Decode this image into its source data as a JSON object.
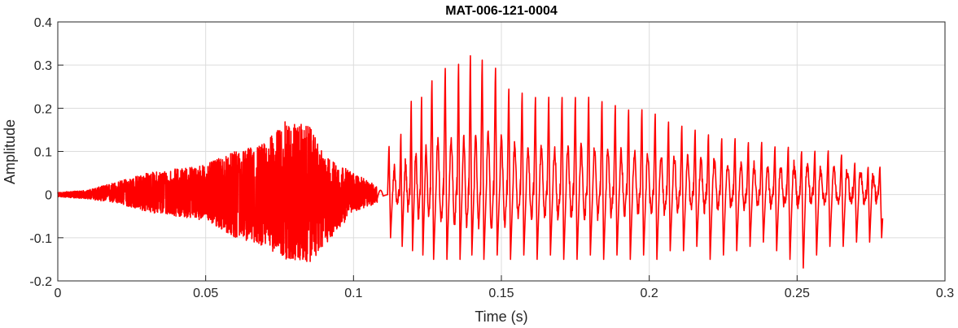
{
  "chart_data": {
    "type": "line",
    "title": "MAT-006-121-0004",
    "xlabel": "Time (s)",
    "ylabel": "Amplitude",
    "xlim": [
      0,
      0.3
    ],
    "ylim": [
      -0.2,
      0.4
    ],
    "xticks": [
      0,
      0.05,
      0.1,
      0.15,
      0.2,
      0.25,
      0.3
    ],
    "xtick_labels": [
      "0",
      "0.05",
      "0.1",
      "0.15",
      "0.2",
      "0.25",
      "0.3"
    ],
    "yticks": [
      -0.2,
      -0.1,
      0,
      0.1,
      0.2,
      0.3,
      0.4
    ],
    "ytick_labels": [
      "-0.2",
      "-0.1",
      "0",
      "0.1",
      "0.2",
      "0.3",
      "0.4"
    ],
    "grid": true,
    "series": [
      {
        "color": "#ff0000",
        "signal_end_s": 0.279,
        "envelope_unvoiced": [
          {
            "t": 0.0,
            "max": 0.005,
            "min": -0.005
          },
          {
            "t": 0.01,
            "max": 0.01,
            "min": -0.01
          },
          {
            "t": 0.02,
            "max": 0.03,
            "min": -0.02
          },
          {
            "t": 0.03,
            "max": 0.05,
            "min": -0.04
          },
          {
            "t": 0.04,
            "max": 0.06,
            "min": -0.05
          },
          {
            "t": 0.05,
            "max": 0.07,
            "min": -0.06
          },
          {
            "t": 0.06,
            "max": 0.1,
            "min": -0.1
          },
          {
            "t": 0.07,
            "max": 0.12,
            "min": -0.12
          },
          {
            "t": 0.077,
            "max": 0.17,
            "min": -0.15
          },
          {
            "t": 0.085,
            "max": 0.16,
            "min": -0.16
          },
          {
            "t": 0.09,
            "max": 0.09,
            "min": -0.12
          },
          {
            "t": 0.1,
            "max": 0.05,
            "min": -0.04
          },
          {
            "t": 0.108,
            "max": 0.02,
            "min": -0.02
          }
        ],
        "voiced_pulses": [
          {
            "t": 0.112,
            "peak": 0.12,
            "trough": -0.1
          },
          {
            "t": 0.116,
            "peak": 0.15,
            "trough": -0.12
          },
          {
            "t": 0.1195,
            "peak": 0.23,
            "trough": -0.13
          },
          {
            "t": 0.123,
            "peak": 0.24,
            "trough": -0.14
          },
          {
            "t": 0.1265,
            "peak": 0.28,
            "trough": -0.15
          },
          {
            "t": 0.131,
            "peak": 0.31,
            "trough": -0.15
          },
          {
            "t": 0.1355,
            "peak": 0.32,
            "trough": -0.15
          },
          {
            "t": 0.1395,
            "peak": 0.34,
            "trough": -0.14
          },
          {
            "t": 0.1435,
            "peak": 0.33,
            "trough": -0.15
          },
          {
            "t": 0.148,
            "peak": 0.31,
            "trough": -0.14
          },
          {
            "t": 0.1525,
            "peak": 0.26,
            "trough": -0.15
          },
          {
            "t": 0.157,
            "peak": 0.25,
            "trough": -0.14
          },
          {
            "t": 0.1615,
            "peak": 0.24,
            "trough": -0.15
          },
          {
            "t": 0.166,
            "peak": 0.24,
            "trough": -0.14
          },
          {
            "t": 0.1705,
            "peak": 0.24,
            "trough": -0.15
          },
          {
            "t": 0.175,
            "peak": 0.24,
            "trough": -0.15
          },
          {
            "t": 0.1795,
            "peak": 0.24,
            "trough": -0.14
          },
          {
            "t": 0.184,
            "peak": 0.23,
            "trough": -0.15
          },
          {
            "t": 0.1885,
            "peak": 0.22,
            "trough": -0.14
          },
          {
            "t": 0.193,
            "peak": 0.21,
            "trough": -0.15
          },
          {
            "t": 0.1975,
            "peak": 0.21,
            "trough": -0.14
          },
          {
            "t": 0.202,
            "peak": 0.2,
            "trough": -0.15
          },
          {
            "t": 0.2065,
            "peak": 0.18,
            "trough": -0.13
          },
          {
            "t": 0.211,
            "peak": 0.17,
            "trough": -0.13
          },
          {
            "t": 0.2155,
            "peak": 0.16,
            "trough": -0.12
          },
          {
            "t": 0.22,
            "peak": 0.15,
            "trough": -0.15
          },
          {
            "t": 0.2245,
            "peak": 0.14,
            "trough": -0.14
          },
          {
            "t": 0.229,
            "peak": 0.14,
            "trough": -0.13
          },
          {
            "t": 0.2335,
            "peak": 0.13,
            "trough": -0.12
          },
          {
            "t": 0.238,
            "peak": 0.13,
            "trough": -0.11
          },
          {
            "t": 0.2425,
            "peak": 0.12,
            "trough": -0.13
          },
          {
            "t": 0.247,
            "peak": 0.12,
            "trough": -0.15
          },
          {
            "t": 0.2515,
            "peak": 0.11,
            "trough": -0.17
          },
          {
            "t": 0.256,
            "peak": 0.11,
            "trough": -0.14
          },
          {
            "t": 0.2605,
            "peak": 0.11,
            "trough": -0.12
          },
          {
            "t": 0.265,
            "peak": 0.1,
            "trough": -0.12
          },
          {
            "t": 0.2695,
            "peak": 0.08,
            "trough": -0.11
          },
          {
            "t": 0.274,
            "peak": 0.07,
            "trough": -0.11
          },
          {
            "t": 0.278,
            "peak": 0.07,
            "trough": -0.1
          }
        ]
      }
    ]
  }
}
